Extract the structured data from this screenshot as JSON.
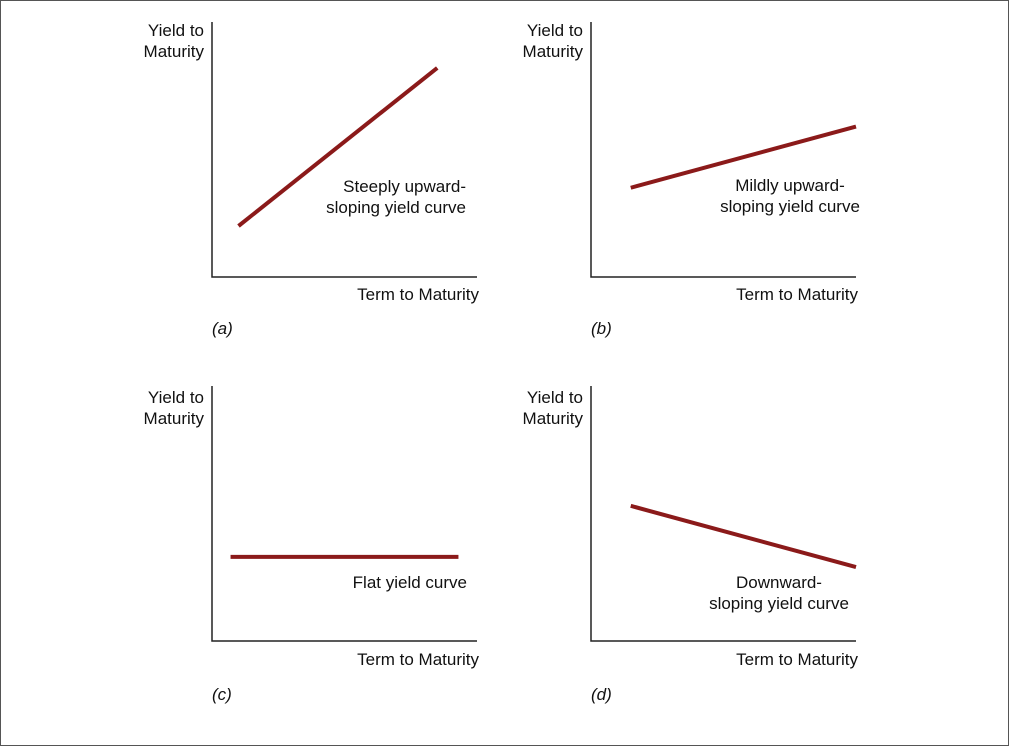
{
  "chart_data": [
    {
      "panel": "(a)",
      "type": "line",
      "ylabel": [
        "Yield to",
        "Maturity"
      ],
      "xlabel": "Term to Maturity",
      "annotation": [
        "Steeply upward-",
        "sloping yield curve"
      ],
      "series": [
        {
          "values": [
            [
              0.1,
              0.2
            ],
            [
              0.85,
              0.82
            ]
          ]
        }
      ],
      "curve_color": "#8b1a1a"
    },
    {
      "panel": "(b)",
      "type": "line",
      "ylabel": [
        "Yield to",
        "Maturity"
      ],
      "xlabel": "Term to Maturity",
      "annotation": [
        "Mildly upward-",
        "sloping yield curve"
      ],
      "series": [
        {
          "values": [
            [
              0.15,
              0.35
            ],
            [
              1.0,
              0.59
            ]
          ]
        }
      ],
      "curve_color": "#8b1a1a"
    },
    {
      "panel": "(c)",
      "type": "line",
      "ylabel": [
        "Yield to",
        "Maturity"
      ],
      "xlabel": "Term to Maturity",
      "annotation": [
        "Flat yield curve"
      ],
      "series": [
        {
          "values": [
            [
              0.07,
              0.33
            ],
            [
              0.93,
              0.33
            ]
          ]
        }
      ],
      "curve_color": "#8b1a1a"
    },
    {
      "panel": "(d)",
      "type": "line",
      "ylabel": [
        "Yield to",
        "Maturity"
      ],
      "xlabel": "Term to Maturity",
      "annotation": [
        "Downward-",
        "sloping yield curve"
      ],
      "series": [
        {
          "values": [
            [
              0.15,
              0.53
            ],
            [
              1.0,
              0.29
            ]
          ]
        }
      ],
      "curve_color": "#8b1a1a"
    }
  ]
}
